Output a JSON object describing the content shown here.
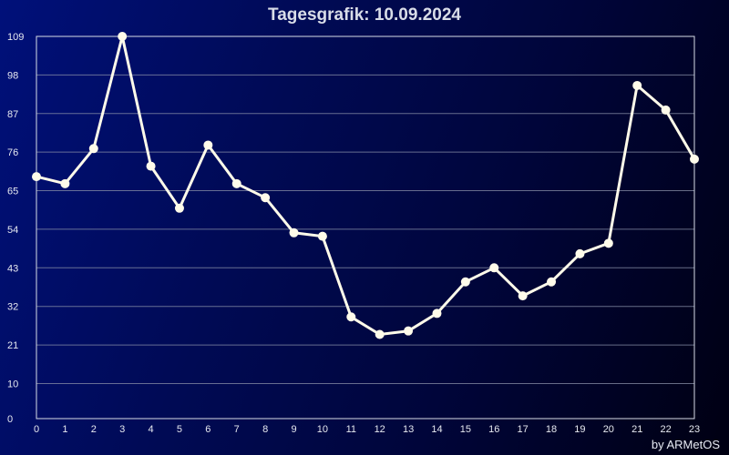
{
  "header": {
    "title": "Tagesgrafik: 10.09.2024"
  },
  "footer": {
    "credit": "by ARMetOS"
  },
  "colors": {
    "line": "#fffbea",
    "grid": "#8a90a8",
    "background_start": "#00107a",
    "background_end": "#000012"
  },
  "chart_data": {
    "type": "line",
    "title": "Tagesgrafik: 10.09.2024",
    "xlabel": "",
    "ylabel": "",
    "x": [
      0,
      1,
      2,
      3,
      4,
      5,
      6,
      7,
      8,
      9,
      10,
      11,
      12,
      13,
      14,
      15,
      16,
      17,
      18,
      19,
      20,
      21,
      22,
      23
    ],
    "x_ticks": [
      "0",
      "1",
      "2",
      "3",
      "4",
      "5",
      "6",
      "7",
      "8",
      "9",
      "10",
      "11",
      "12",
      "13",
      "14",
      "15",
      "16",
      "17",
      "18",
      "19",
      "20",
      "21",
      "22",
      "23"
    ],
    "y_ticks": [
      "0",
      "10",
      "21",
      "32",
      "43",
      "54",
      "65",
      "76",
      "87",
      "98",
      "109"
    ],
    "ylim": [
      0,
      109
    ],
    "grid": true,
    "legend": "none",
    "series": [
      {
        "values": [
          69,
          67,
          77,
          109,
          72,
          60,
          78,
          67,
          63,
          53,
          52,
          29,
          24,
          25,
          30,
          39,
          43,
          35,
          39,
          47,
          50,
          95,
          88,
          74
        ]
      }
    ]
  }
}
